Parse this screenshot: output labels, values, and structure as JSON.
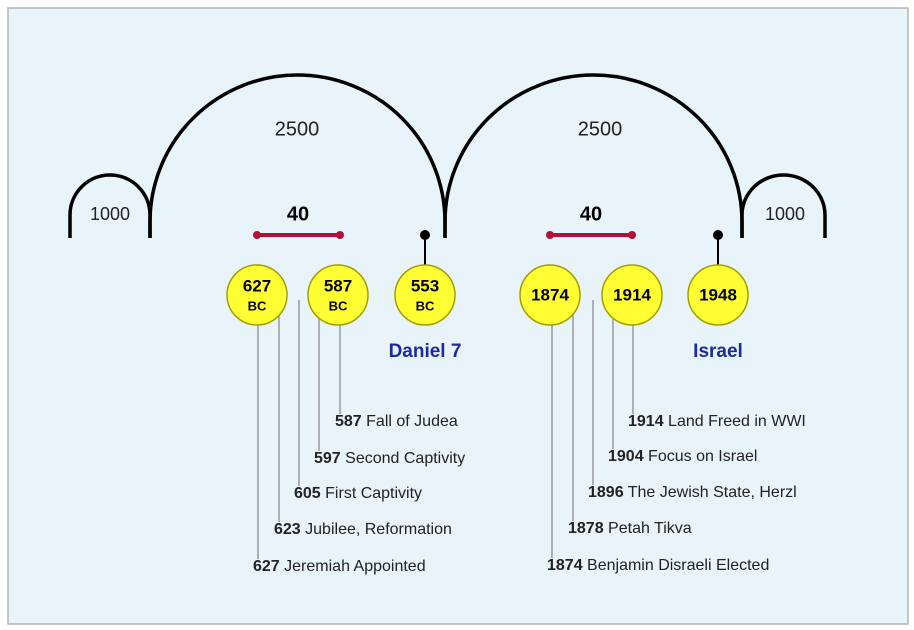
{
  "spans": [
    {
      "label": "1000"
    },
    {
      "label": "2500"
    },
    {
      "label": "2500"
    },
    {
      "label": "1000"
    }
  ],
  "intervals": [
    {
      "label": "40"
    },
    {
      "label": "40"
    }
  ],
  "dates": [
    {
      "year": "627",
      "era": "BC"
    },
    {
      "year": "587",
      "era": "BC"
    },
    {
      "year": "553",
      "era": "BC"
    },
    {
      "year": "1874"
    },
    {
      "year": "1914"
    },
    {
      "year": "1948"
    }
  ],
  "markers": [
    {
      "label": "Daniel 7"
    },
    {
      "label": "Israel"
    }
  ],
  "events_left": [
    {
      "year": "587",
      "text": "Fall of Judea"
    },
    {
      "year": "597",
      "text": "Second Captivity"
    },
    {
      "year": "605",
      "text": "First Captivity"
    },
    {
      "year": "623",
      "text": "Jubilee, Reformation"
    },
    {
      "year": "627",
      "text": "Jeremiah Appointed"
    }
  ],
  "events_right": [
    {
      "year": "1914",
      "text": "Land Freed in WWI"
    },
    {
      "year": "1904",
      "text": "Focus on Israel"
    },
    {
      "year": "1896",
      "text": "The Jewish State, Herzl"
    },
    {
      "year": "1878",
      "text": "Petah Tikva"
    },
    {
      "year": "1874",
      "text": "Benjamin Disraeli Elected"
    }
  ]
}
